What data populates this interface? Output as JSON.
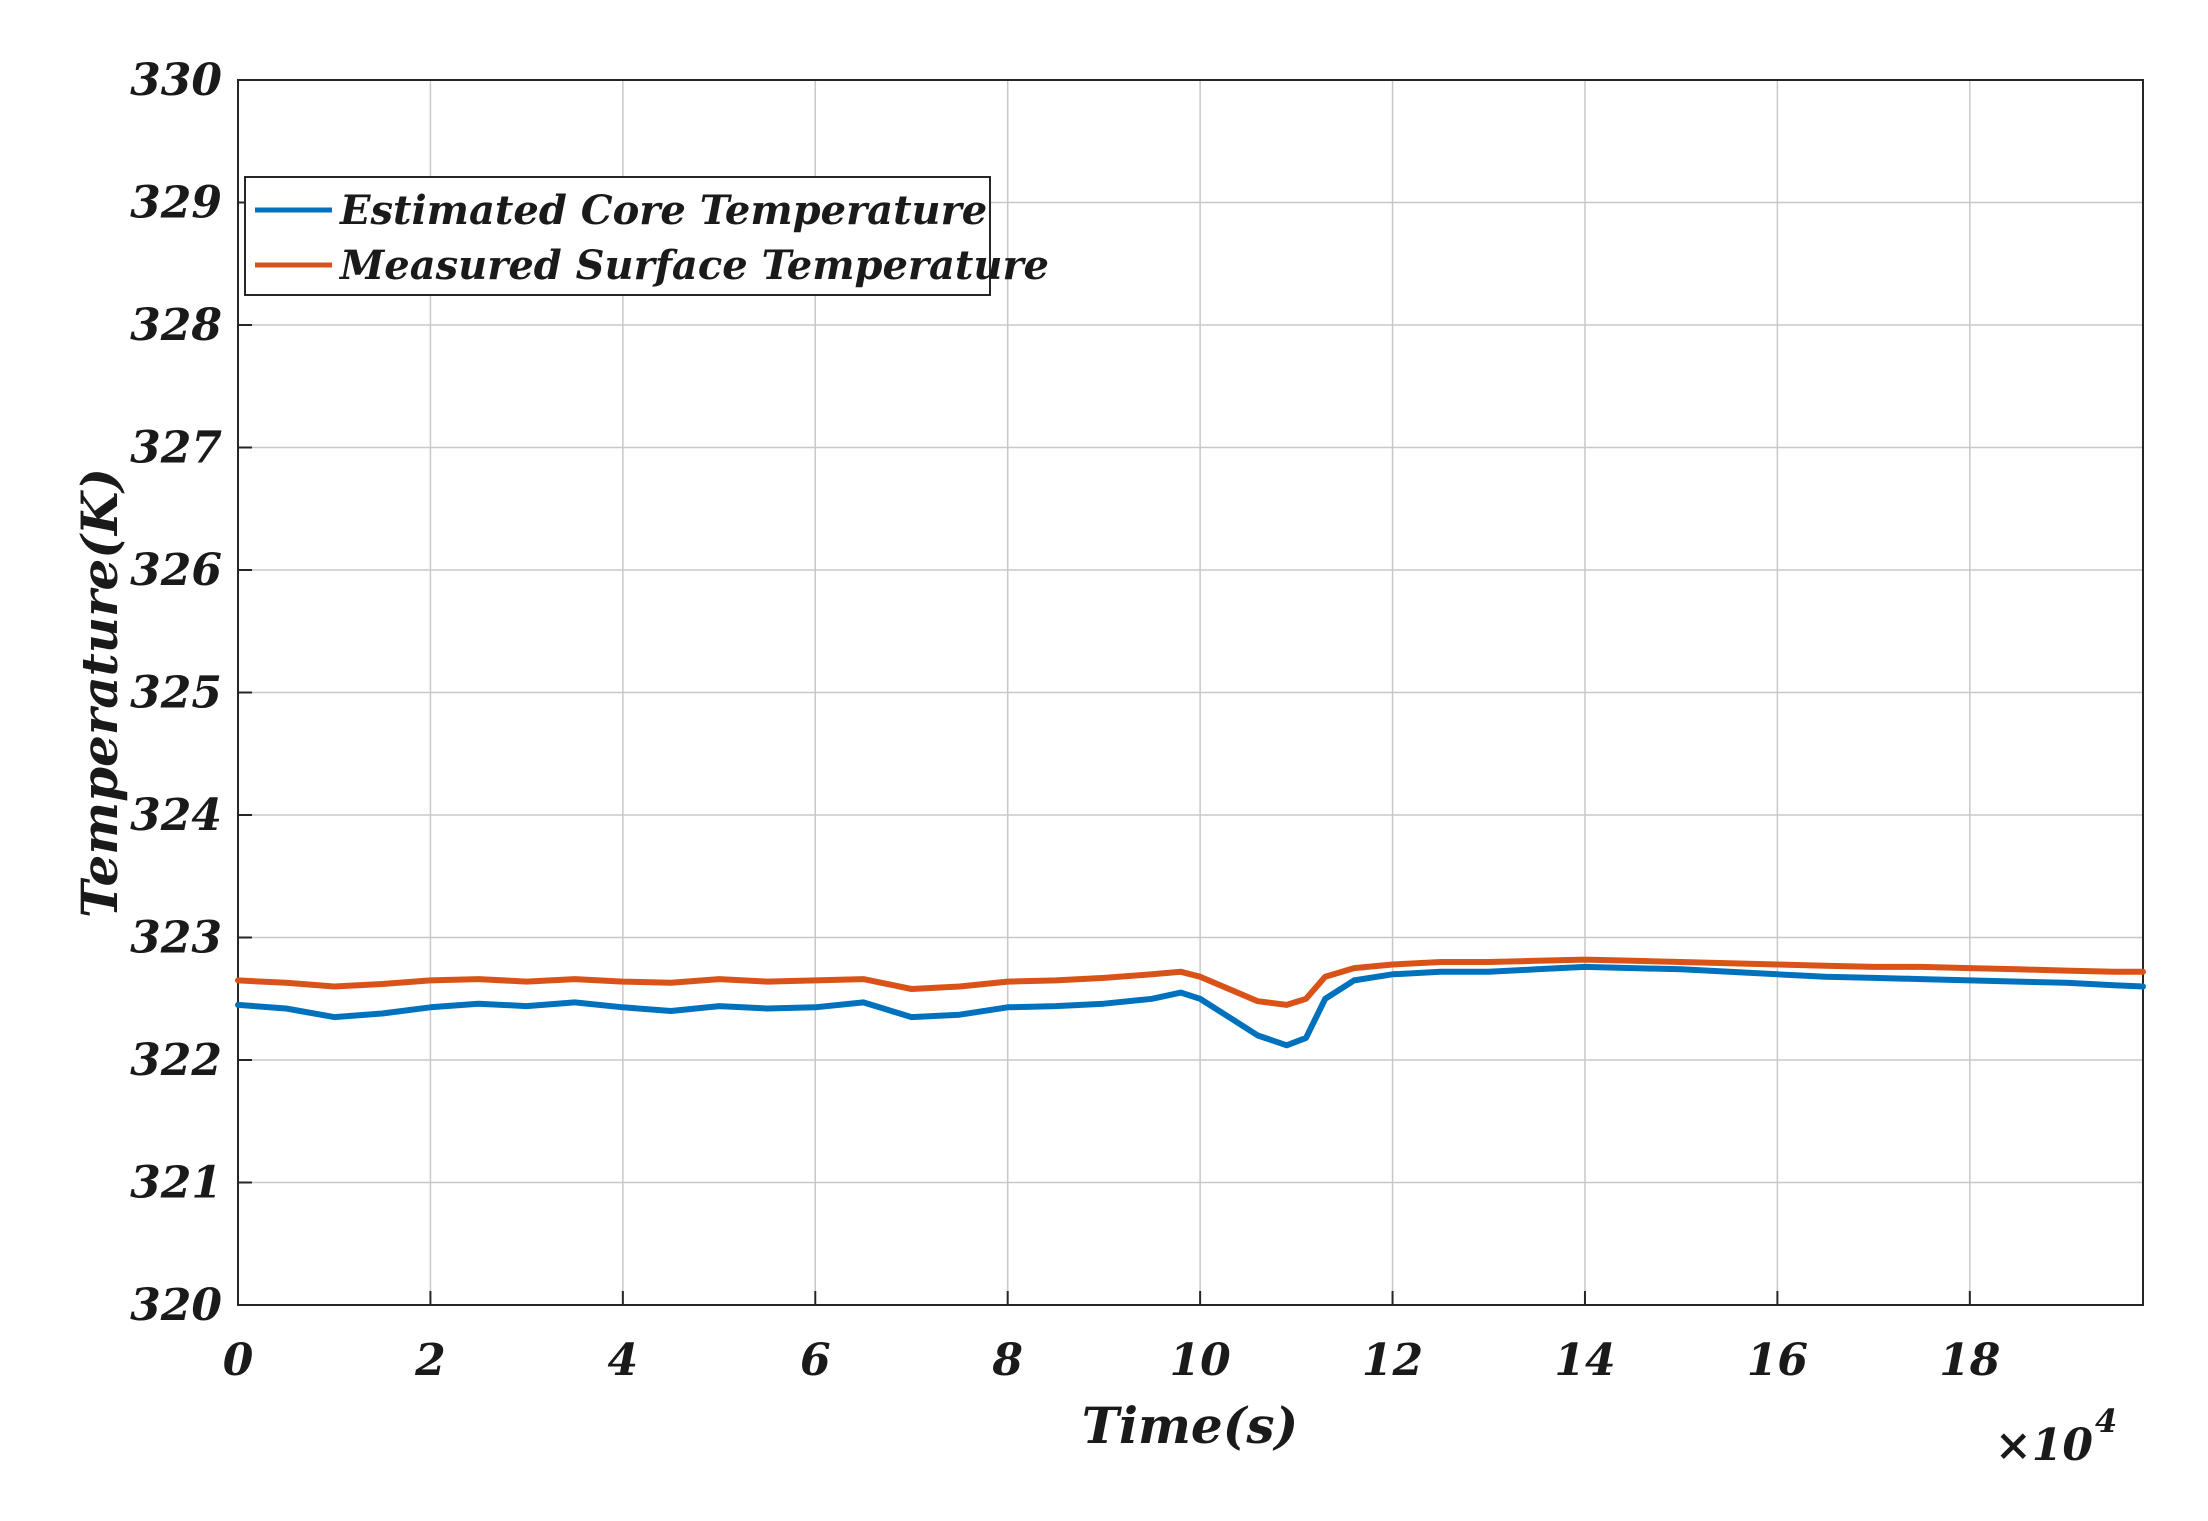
{
  "chart_data": {
    "type": "line",
    "title": "",
    "xlabel": "Time(s)",
    "ylabel": "Temperature(K)",
    "x_exponent_label": "×10",
    "x_exponent_power": "4",
    "xlim": [
      0,
      19.8
    ],
    "ylim": [
      320,
      330
    ],
    "x_ticks": [
      0,
      2,
      4,
      6,
      8,
      10,
      12,
      14,
      16,
      18
    ],
    "y_ticks": [
      320,
      321,
      322,
      323,
      324,
      325,
      326,
      327,
      328,
      329,
      330
    ],
    "x_tick_labels": [
      "0",
      "2",
      "4",
      "6",
      "8",
      "10",
      "12",
      "14",
      "16",
      "18"
    ],
    "y_tick_labels": [
      "320",
      "321",
      "322",
      "323",
      "324",
      "325",
      "326",
      "327",
      "328",
      "329",
      "330"
    ],
    "grid": true,
    "legend_position": "top-left",
    "series": [
      {
        "name": "Estimated Core Temperature",
        "color": "#0072BD",
        "x": [
          0,
          0.5,
          1.0,
          1.5,
          2.0,
          2.5,
          3.0,
          3.5,
          4.0,
          4.5,
          5.0,
          5.5,
          6.0,
          6.5,
          7.0,
          7.5,
          8.0,
          8.5,
          9.0,
          9.5,
          9.8,
          10.0,
          10.3,
          10.6,
          10.9,
          11.1,
          11.3,
          11.6,
          12.0,
          12.5,
          13.0,
          13.5,
          14.0,
          14.5,
          15.0,
          15.5,
          16.0,
          16.5,
          17.0,
          17.5,
          18.0,
          18.5,
          19.0,
          19.5,
          19.8
        ],
        "y": [
          322.45,
          322.42,
          322.35,
          322.38,
          322.43,
          322.46,
          322.44,
          322.47,
          322.43,
          322.4,
          322.44,
          322.42,
          322.43,
          322.47,
          322.35,
          322.37,
          322.43,
          322.44,
          322.46,
          322.5,
          322.55,
          322.5,
          322.35,
          322.2,
          322.12,
          322.18,
          322.5,
          322.65,
          322.7,
          322.72,
          322.72,
          322.74,
          322.76,
          322.75,
          322.74,
          322.72,
          322.7,
          322.68,
          322.67,
          322.66,
          322.65,
          322.64,
          322.63,
          322.61,
          322.6
        ]
      },
      {
        "name": "Measured Surface Temperature",
        "color": "#D95319",
        "x": [
          0,
          0.5,
          1.0,
          1.5,
          2.0,
          2.5,
          3.0,
          3.5,
          4.0,
          4.5,
          5.0,
          5.5,
          6.0,
          6.5,
          7.0,
          7.5,
          8.0,
          8.5,
          9.0,
          9.5,
          9.8,
          10.0,
          10.3,
          10.6,
          10.9,
          11.1,
          11.3,
          11.6,
          12.0,
          12.5,
          13.0,
          13.5,
          14.0,
          14.5,
          15.0,
          15.5,
          16.0,
          16.5,
          17.0,
          17.5,
          18.0,
          18.5,
          19.0,
          19.5,
          19.8
        ],
        "y": [
          322.65,
          322.63,
          322.6,
          322.62,
          322.65,
          322.66,
          322.64,
          322.66,
          322.64,
          322.63,
          322.66,
          322.64,
          322.65,
          322.66,
          322.58,
          322.6,
          322.64,
          322.65,
          322.67,
          322.7,
          322.72,
          322.68,
          322.58,
          322.48,
          322.45,
          322.5,
          322.68,
          322.75,
          322.78,
          322.8,
          322.8,
          322.81,
          322.82,
          322.81,
          322.8,
          322.79,
          322.78,
          322.77,
          322.76,
          322.76,
          322.75,
          322.74,
          322.73,
          322.72,
          322.72
        ]
      }
    ]
  }
}
